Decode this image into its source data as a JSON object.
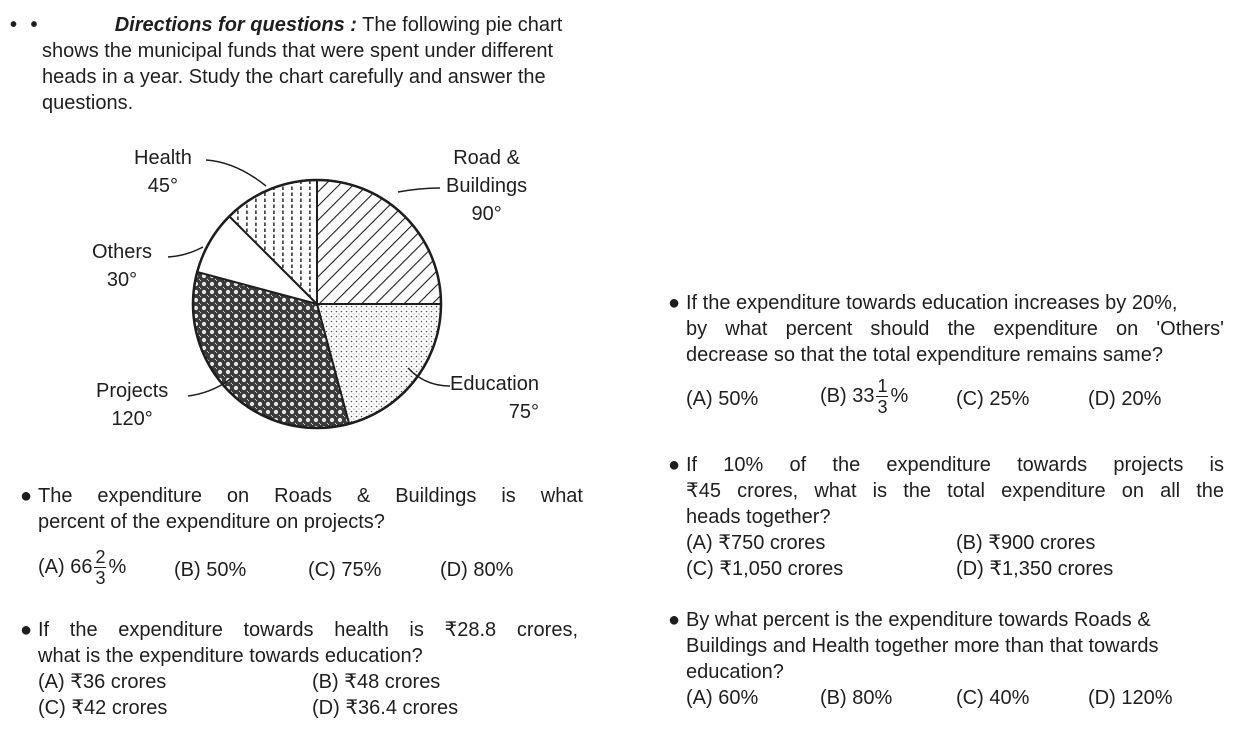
{
  "directions": {
    "bullets": "• •",
    "title": "Directions for questions :",
    "line1": "The following pie chart",
    "line2": "shows the municipal funds that were spent under different",
    "line3": "heads in a year. Study the chart carefully and answer the",
    "line4": "questions."
  },
  "chart_data": {
    "type": "pie",
    "title": "",
    "unit": "degrees",
    "slices": [
      {
        "label": "Road & Buildings",
        "value": 90,
        "value_label": "90°",
        "pattern": "diagonal-hatch"
      },
      {
        "label": "Education",
        "value": 75,
        "value_label": "75°",
        "pattern": "fine-dots"
      },
      {
        "label": "Projects",
        "value": 120,
        "value_label": "120°",
        "pattern": "crosshatch-dots"
      },
      {
        "label": "Others",
        "value": 30,
        "value_label": "30°",
        "pattern": "blank"
      },
      {
        "label": "Health",
        "value": 45,
        "value_label": "45°",
        "pattern": "vertical-dots"
      }
    ],
    "label_lines": {
      "road": [
        "Road &",
        "Buildings"
      ],
      "education": [
        "Education"
      ],
      "projects": [
        "Projects"
      ],
      "others": [
        "Others"
      ],
      "health": [
        "Health"
      ]
    }
  },
  "questions": [
    {
      "line1": "The expenditure on Roads & Buildings is what",
      "line2": "percent of the expenditure on projects?",
      "options": {
        "a_prefix": "(A)  66",
        "a_num": "2",
        "a_den": "3",
        "a_suffix": "%",
        "b": "(B)  50%",
        "c": "(C)  75%",
        "d": "(D)  80%"
      }
    },
    {
      "line1": "If the expenditure towards health is ₹28.8 crores,",
      "line2": "what is the expenditure towards education?",
      "options": {
        "a": "(A)  ₹36 crores",
        "b": "(B)  ₹48 crores",
        "c": "(C)  ₹42 crores",
        "d": "(D)  ₹36.4 crores"
      }
    },
    {
      "line1": "If the expenditure towards education increases by 20%,",
      "line2": "by what percent should the expenditure on 'Others'",
      "line3": "decrease so that the total expenditure remains same?",
      "options": {
        "a": "(A)  50%",
        "b_prefix": "(B)  33",
        "b_num": "1",
        "b_den": "3",
        "b_suffix": "%",
        "c": "(C)  25%",
        "d": "(D)  20%"
      }
    },
    {
      "line1": "If 10% of the expenditure towards projects is",
      "line2": "₹45 crores, what is the total expenditure on all the",
      "line3": "heads together?",
      "options": {
        "a": "(A)  ₹750 crores",
        "b": "(B)  ₹900 crores",
        "c": "(C)  ₹1,050 crores",
        "d": "(D)  ₹1,350 crores"
      }
    },
    {
      "line1": "By what percent is the expenditure towards Roads &",
      "line2": "Buildings and Health together more than that towards",
      "line3": "education?",
      "options": {
        "a": "(A)  60%",
        "b": "(B)  80%",
        "c": "(C)  40%",
        "d": "(D)  120%"
      }
    }
  ]
}
